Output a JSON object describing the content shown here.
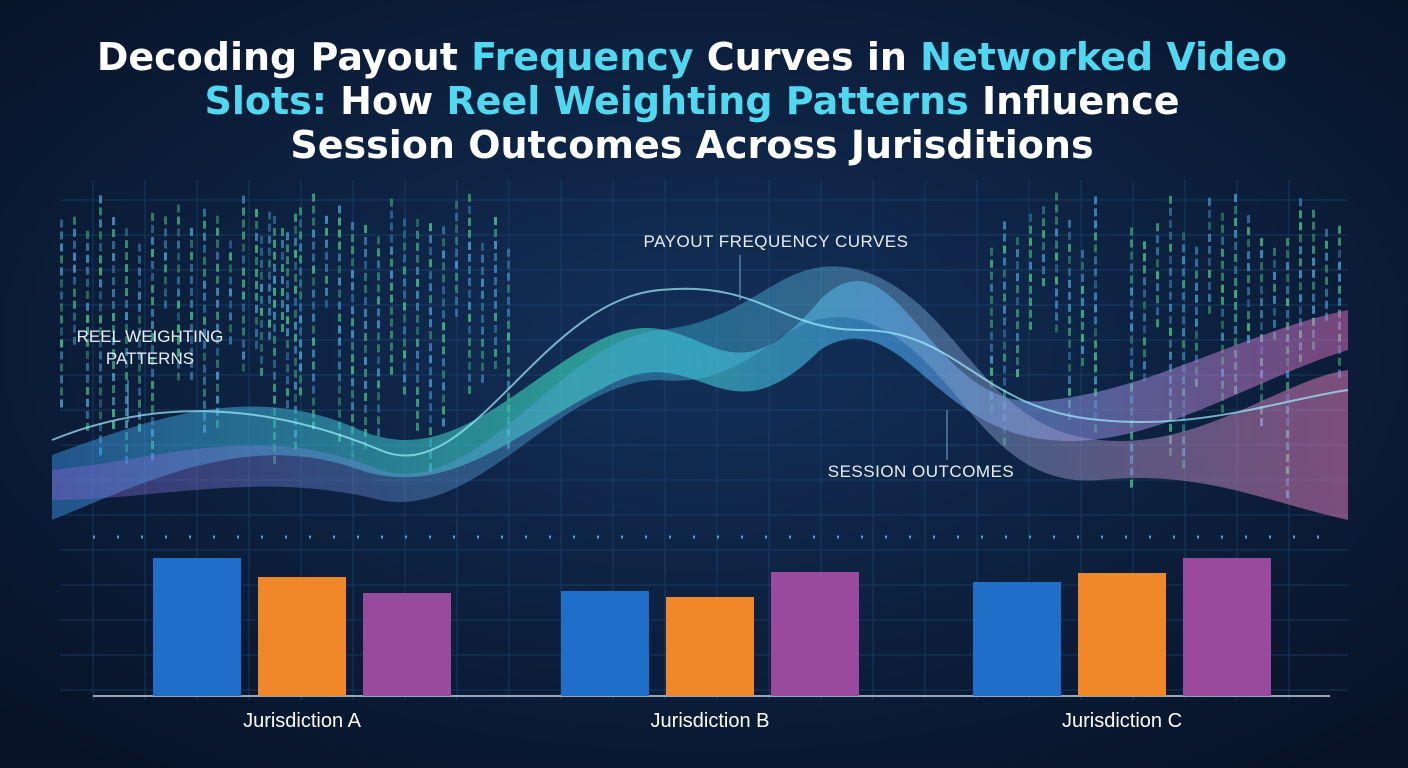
{
  "chart_data": {
    "type": "bar",
    "title_lines": [
      [
        {
          "text": "Decoding Payout",
          "color": "#ffffff"
        },
        {
          "text": "Frequency",
          "color": "#4fd8f0"
        },
        {
          "text": "Curves in",
          "color": "#ffffff"
        },
        {
          "text": "Networked Video",
          "color": "#4fd8f0"
        }
      ],
      [
        {
          "text": "Slots:",
          "color": "#4fd8f0"
        },
        {
          "text": "How",
          "color": "#ffffff"
        },
        {
          "text": "Reel Weighting Patterns",
          "color": "#4fd8f0"
        },
        {
          "text": "Influence",
          "color": "#ffffff"
        }
      ],
      [
        {
          "text": "Session Outcomes Across Jurisditions",
          "color": "#ffffff"
        }
      ]
    ],
    "annotations": [
      "PAYOUT FREQUENCY CURVES",
      "REEL WEIGHTING PATTERNS",
      "SESSION OUTCOMES"
    ],
    "categories": [
      "Jurisdiction A",
      "Jurisdiction B",
      "Jurisdiction C"
    ],
    "series": [
      {
        "color": "#1f6fc8",
        "values": [
          138,
          105,
          114
        ]
      },
      {
        "color": "#f0882a",
        "values": [
          119,
          99,
          123
        ]
      },
      {
        "color": "#9a4a9c",
        "values": [
          103,
          124,
          138
        ]
      }
    ]
  }
}
